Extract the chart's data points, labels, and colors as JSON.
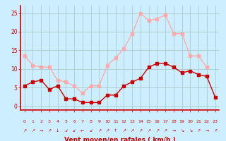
{
  "hours": [
    0,
    1,
    2,
    3,
    4,
    5,
    6,
    7,
    8,
    9,
    10,
    11,
    12,
    13,
    14,
    15,
    16,
    17,
    18,
    19,
    20,
    21,
    22,
    23
  ],
  "wind_avg": [
    5.5,
    6.5,
    7.0,
    4.5,
    5.5,
    2.0,
    2.0,
    1.0,
    1.0,
    1.0,
    3.0,
    3.0,
    5.5,
    6.5,
    7.5,
    10.5,
    11.5,
    11.5,
    10.5,
    9.0,
    9.5,
    8.5,
    8.0,
    2.5
  ],
  "wind_gust": [
    13.5,
    11.0,
    10.5,
    10.5,
    7.0,
    6.5,
    5.5,
    3.5,
    5.5,
    5.5,
    11.0,
    13.0,
    15.5,
    19.5,
    25.0,
    23.0,
    23.5,
    24.5,
    19.5,
    19.5,
    13.5,
    13.5,
    10.5,
    null
  ],
  "wind_avg_color": "#cc0000",
  "wind_gust_color": "#ffaaaa",
  "bg_color": "#cceeff",
  "grid_color": "#aacccc",
  "axis_color": "#cc0000",
  "tick_color": "#cc0000",
  "xlabel": "Vent moyen/en rafales ( km/h )",
  "xlabel_color": "#cc0000",
  "yticks": [
    0,
    5,
    10,
    15,
    20,
    25
  ],
  "ylim": [
    -1,
    27
  ],
  "xlim": [
    -0.5,
    23.5
  ],
  "marker_size": 2.5,
  "linewidth": 1.0,
  "arrow_symbols": [
    "↗",
    "↗",
    "→",
    "↗",
    "↓",
    "↙",
    "↙",
    "←",
    "↙",
    "↗",
    "↗",
    "↑",
    "↗",
    "↗",
    "↗",
    "↗",
    "↗",
    "↗",
    "→",
    "↘",
    "↘",
    "↗",
    "→",
    "↗"
  ]
}
